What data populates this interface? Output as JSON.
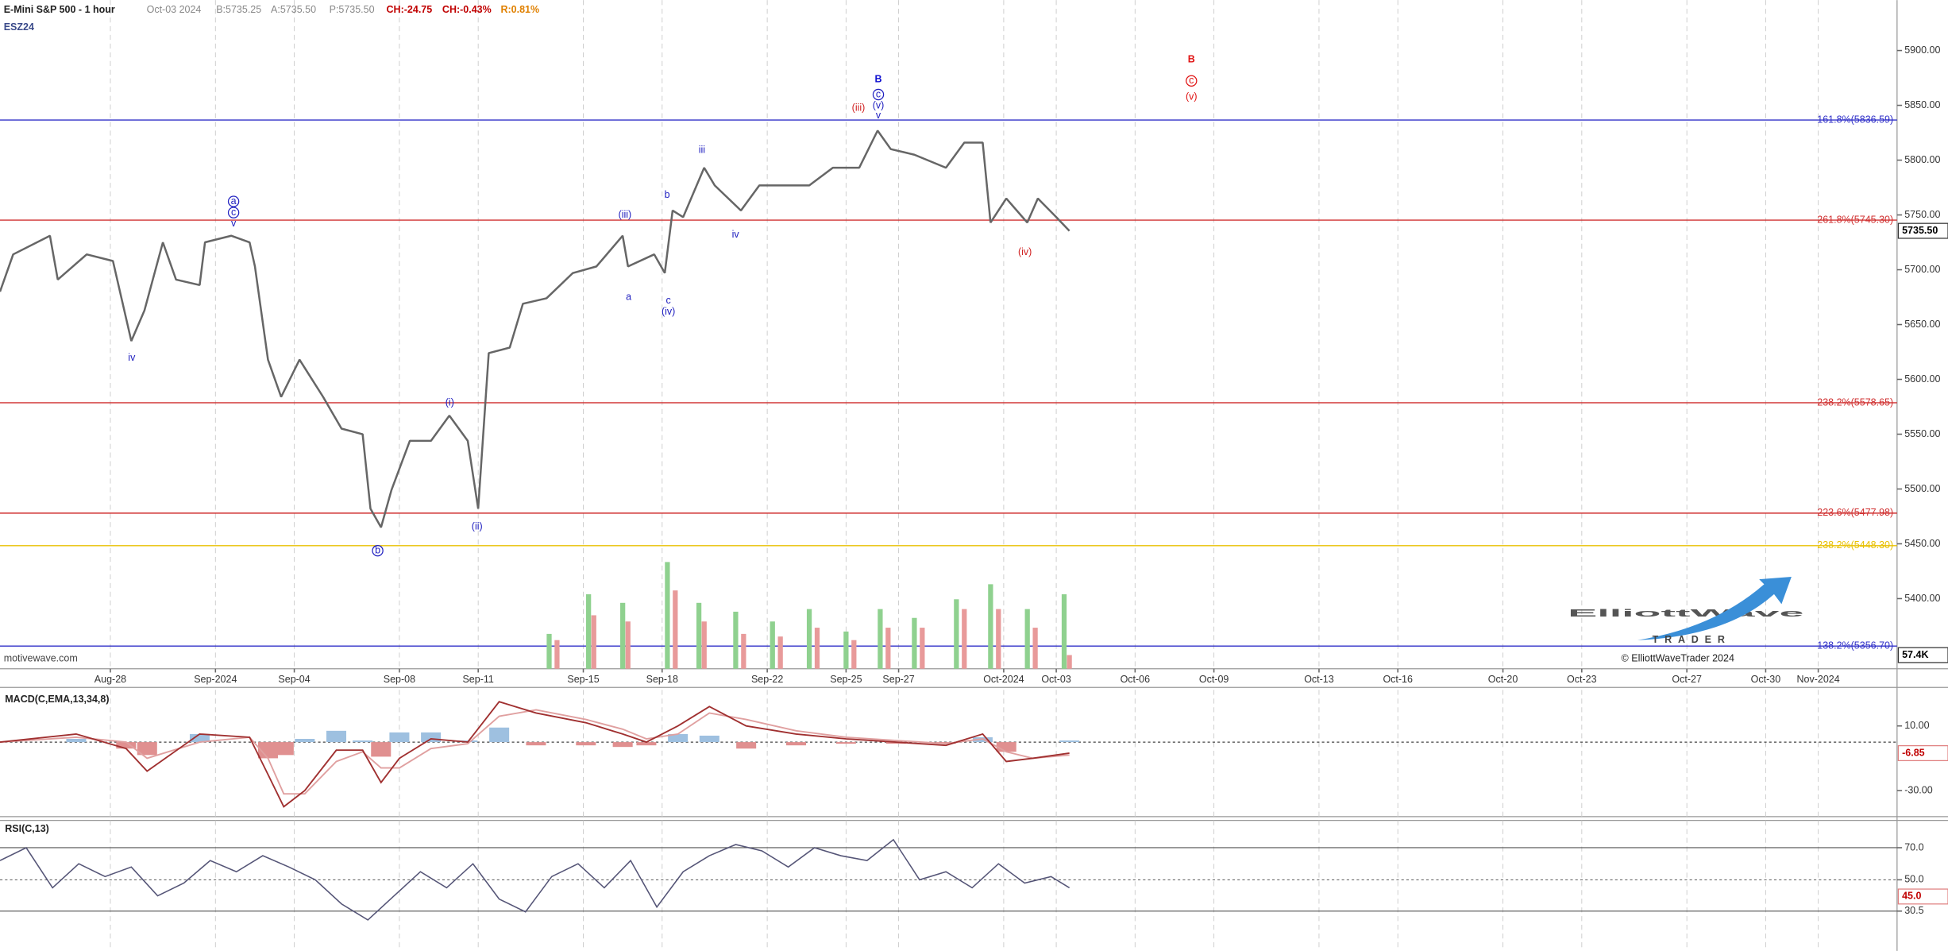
{
  "header": {
    "symbol_name": "E-Mini S&P 500 - 1 hour",
    "date": "Oct-03 2024",
    "bid": "B:5735.25",
    "ask": "A:5735.50",
    "price": "P:5735.50",
    "change": "CH:-24.75",
    "change_pct": "CH:-0.43%",
    "range": "R:0.81%",
    "ticker": "ESZ24"
  },
  "watermark": "motivewave.com",
  "logo": {
    "line1": "ElliottWave",
    "line2": "TRADER",
    "copyright": "© ElliottWaveTrader 2024"
  },
  "chart_data": [
    {
      "type": "line",
      "color": "#666666",
      "x": [
        -4.2,
        -3.7,
        -2.3,
        -2.0,
        -0.9,
        0.1,
        0.8,
        1.3,
        2.0,
        2.5,
        3.4,
        3.6,
        4.6,
        5.3,
        5.5,
        6.0,
        6.5,
        7.2,
        8.1,
        8.8,
        9.6,
        9.9,
        10.3,
        10.7,
        11.4,
        12.2,
        12.9,
        13.6,
        14.0,
        14.4,
        15.2,
        15.7,
        16.6,
        17.6,
        18.5,
        19.5,
        19.7,
        20.7,
        21.1,
        21.4,
        21.8,
        22.6,
        23.0,
        24.0,
        24.7,
        25.6,
        26.6,
        27.5,
        28.5,
        29.2,
        29.7,
        30.6,
        31.8,
        32.5,
        33.2,
        33.5,
        34.1,
        34.9,
        35.3,
        36.0,
        36.5
      ],
      "values": [
        5680,
        5714,
        5731,
        5691,
        5714,
        5708,
        5635,
        5663,
        5725,
        5691,
        5686,
        5725,
        5731,
        5725,
        5703,
        5618,
        5584,
        5618,
        5584,
        5555,
        5550,
        5482,
        5465,
        5499,
        5544,
        5544,
        5567,
        5544,
        5482,
        5624,
        5629,
        5669,
        5674,
        5697,
        5703,
        5731,
        5703,
        5714,
        5697,
        5754,
        5748,
        5793,
        5777,
        5754,
        5777,
        5777,
        5777,
        5793,
        5793,
        5827,
        5810,
        5805,
        5793,
        5816,
        5816,
        5743,
        5765,
        5743,
        5765,
        5748,
        5735.5
      ],
      "last_value_label": "5735.50",
      "xlim": [
        -4.2,
        68
      ],
      "ylim": [
        5336,
        5946
      ],
      "xticks": [
        {
          "value": 0,
          "label": "Aug-28"
        },
        {
          "value": 4,
          "label": "Sep-2024"
        },
        {
          "value": 7,
          "label": "Sep-04"
        },
        {
          "value": 11,
          "label": "Sep-08"
        },
        {
          "value": 14,
          "label": "Sep-11"
        },
        {
          "value": 18,
          "label": "Sep-15"
        },
        {
          "value": 21,
          "label": "Sep-18"
        },
        {
          "value": 25,
          "label": "Sep-22"
        },
        {
          "value": 28,
          "label": "Sep-25"
        },
        {
          "value": 30,
          "label": "Sep-27"
        },
        {
          "value": 34,
          "label": "Oct-2024"
        },
        {
          "value": 36,
          "label": "Oct-03"
        },
        {
          "value": 39,
          "label": "Oct-06"
        },
        {
          "value": 42,
          "label": "Oct-09"
        },
        {
          "value": 46,
          "label": "Oct-13"
        },
        {
          "value": 49,
          "label": "Oct-16"
        },
        {
          "value": 53,
          "label": "Oct-20"
        },
        {
          "value": 56,
          "label": "Oct-23"
        },
        {
          "value": 60,
          "label": "Oct-27"
        },
        {
          "value": 63,
          "label": "Oct-30"
        },
        {
          "value": 65,
          "label": "Nov-2024"
        }
      ],
      "yticks": [
        {
          "value": 5400,
          "label": "5400.00"
        },
        {
          "value": 5450,
          "label": "5450.00"
        },
        {
          "value": 5500,
          "label": "5500.00"
        },
        {
          "value": 5550,
          "label": "5550.00"
        },
        {
          "value": 5600,
          "label": "5600.00"
        },
        {
          "value": 5650,
          "label": "5650.00"
        },
        {
          "value": 5700,
          "label": "5700.00"
        },
        {
          "value": 5750,
          "label": "5750.00"
        },
        {
          "value": 5800,
          "label": "5800.00"
        },
        {
          "value": 5850,
          "label": "5850.00"
        },
        {
          "value": 5900,
          "label": "5900.00"
        }
      ],
      "grid": true,
      "levels": [
        {
          "value": 5836.59,
          "label": "161.8%(5836.59)",
          "color": "#3030c8"
        },
        {
          "value": 5745.3,
          "label": "261.8%(5745.30)",
          "color": "#d03030"
        },
        {
          "value": 5578.65,
          "label": "238.2%(5578.65)",
          "color": "#d03030"
        },
        {
          "value": 5477.98,
          "label": "223.6%(5477.98)",
          "color": "#d03030"
        },
        {
          "value": 5448.3,
          "label": "238.2%(5448.30)",
          "color": "#e8c000"
        },
        {
          "value": 5356.7,
          "label": "138.2%(5356.70)",
          "color": "#3030c8"
        }
      ],
      "annotations": [
        {
          "text": "a",
          "color": "#2020c0",
          "circled": true
        },
        {
          "text": "c",
          "color": "#2020c0",
          "circled": true
        },
        {
          "text": "v",
          "color": "#2020c0"
        },
        {
          "text": "iv",
          "color": "#2020c0"
        },
        {
          "text": "b",
          "color": "#2020c0",
          "circled": true
        },
        {
          "text": "(i)",
          "color": "#2020c0"
        },
        {
          "text": "(ii)",
          "color": "#2020c0"
        },
        {
          "text": "(iii)",
          "color": "#2020c0"
        },
        {
          "text": "a",
          "color": "#2020c0"
        },
        {
          "text": "b",
          "color": "#2020c0"
        },
        {
          "text": "c",
          "color": "#2020c0"
        },
        {
          "text": "(iv)",
          "color": "#2020c0"
        },
        {
          "text": "iii",
          "color": "#2020c0"
        },
        {
          "text": "iv",
          "color": "#2020c0"
        },
        {
          "text": "B",
          "color": "#1010d0",
          "bold": true
        },
        {
          "text": "c",
          "color": "#2020c0",
          "circled": true
        },
        {
          "text": "(v)",
          "color": "#2020c0"
        },
        {
          "text": "v",
          "color": "#2020c0"
        },
        {
          "text": "(iii)",
          "color": "#d02020"
        },
        {
          "text": "(iv)",
          "color": "#d02020"
        },
        {
          "text": "B",
          "color": "#e01010",
          "bold": true
        },
        {
          "text": "c",
          "color": "#e01010",
          "circled": true
        },
        {
          "text": "(v)",
          "color": "#e01010"
        }
      ]
    },
    {
      "type": "bar",
      "x": [
        16.7,
        17.0,
        18.2,
        18.4,
        19.5,
        19.7,
        21.2,
        21.5,
        22.4,
        22.6,
        23.8,
        24.1,
        25.2,
        25.5,
        26.6,
        26.9,
        28.0,
        28.3,
        29.3,
        29.6,
        30.6,
        30.9,
        32.2,
        32.5,
        33.5,
        33.8,
        34.9,
        35.2,
        36.3,
        36.5
      ],
      "values": [
        146,
        120,
        312,
        224,
        276,
        198,
        447,
        328,
        276,
        198,
        239,
        146,
        198,
        135,
        250,
        172,
        156,
        120,
        250,
        172,
        213,
        172,
        291,
        250,
        354,
        250,
        250,
        172,
        312,
        57.4
      ],
      "colors": [
        "#8fd18f",
        "#e89a9a",
        "#8fd18f",
        "#e89a9a",
        "#8fd18f",
        "#e89a9a",
        "#8fd18f",
        "#e89a9a",
        "#8fd18f",
        "#e89a9a",
        "#8fd18f",
        "#e89a9a",
        "#8fd18f",
        "#e89a9a",
        "#8fd18f",
        "#e89a9a",
        "#8fd18f",
        "#e89a9a",
        "#8fd18f",
        "#e89a9a",
        "#8fd18f",
        "#e89a9a",
        "#8fd18f",
        "#e89a9a",
        "#8fd18f",
        "#e89a9a",
        "#8fd18f",
        "#e89a9a",
        "#8fd18f",
        "#e89a9a"
      ],
      "last_value_label": "57.4K",
      "xlim": [
        -4.2,
        68
      ],
      "ylim": [
        0,
        2800
      ]
    },
    {
      "type": "macd",
      "title": "MACD(C,EMA,13,34,8)",
      "x": [
        -4.2,
        -1.3,
        0.6,
        1.4,
        3.4,
        5.3,
        6.0,
        6.6,
        7.4,
        8.6,
        9.6,
        10.3,
        11.0,
        12.2,
        13.6,
        14.8,
        16.2,
        18.1,
        19.5,
        20.4,
        21.6,
        22.8,
        24.2,
        26.1,
        28.0,
        29.9,
        31.8,
        33.2,
        34.1,
        35.1,
        36.5
      ],
      "macd": {
        "color": "#a03030",
        "values": [
          0,
          5,
          -4,
          -18,
          5,
          3,
          -20,
          -40,
          -30,
          -5,
          -5,
          -25,
          -10,
          2,
          0,
          25,
          18,
          12,
          5,
          0,
          10,
          22,
          10,
          5,
          2,
          0,
          -2,
          5,
          -12,
          -10,
          -6.85
        ]
      },
      "signal": {
        "color": "#e0a0a0",
        "values": [
          0,
          3,
          0,
          -10,
          0,
          3,
          -10,
          -32,
          -32,
          -12,
          -6,
          -16,
          -16,
          -4,
          -1,
          16,
          20,
          14,
          8,
          2,
          5,
          18,
          14,
          7,
          3,
          1,
          -1,
          2,
          -6,
          -10,
          -8
        ]
      },
      "histogram": {
        "up_color": "#9ec0e0",
        "down_color": "#e09090",
        "values": [
          0,
          2,
          -4,
          -8,
          5,
          0,
          -10,
          -8,
          2,
          7,
          1,
          -9,
          6,
          6,
          1,
          9,
          -2,
          -2,
          -3,
          -2,
          5,
          4,
          -4,
          -2,
          -1,
          -1,
          -1,
          3,
          -6,
          0,
          1
        ]
      },
      "last_value_label": "-6.85",
      "xlim": [
        -4.2,
        68
      ],
      "ylim": [
        -46.9,
        32.3
      ],
      "yticks": [
        {
          "value": 10,
          "label": "10.00"
        },
        {
          "value": -30,
          "label": "-30.00"
        }
      ]
    },
    {
      "type": "rsi",
      "title": "RSI(C,13)",
      "color": "#555577",
      "x": [
        -4.2,
        -3.2,
        -2.2,
        -1.2,
        -0.2,
        0.8,
        1.8,
        2.8,
        3.8,
        4.8,
        5.8,
        6.8,
        7.8,
        8.8,
        9.8,
        10.8,
        11.8,
        12.8,
        13.8,
        14.8,
        15.8,
        16.8,
        17.8,
        18.8,
        19.8,
        20.8,
        21.8,
        22.8,
        23.8,
        24.8,
        25.8,
        26.8,
        27.8,
        28.8,
        29.8,
        30.8,
        31.8,
        32.8,
        33.8,
        34.8,
        35.8,
        36.5
      ],
      "values": [
        62,
        70,
        45,
        60,
        52,
        58,
        40,
        48,
        62,
        55,
        65,
        58,
        50,
        35,
        25,
        40,
        55,
        45,
        60,
        38,
        30,
        52,
        60,
        45,
        62,
        33,
        55,
        65,
        72,
        68,
        58,
        70,
        65,
        62,
        75,
        50,
        55,
        45,
        60,
        48,
        52,
        45
      ],
      "last_value_label": "45.0",
      "xlim": [
        -4.2,
        68
      ],
      "ylim": [
        5.7,
        87
      ],
      "yticks": [
        {
          "value": 70,
          "label": "70.0"
        },
        {
          "value": 50,
          "label": "50.0"
        },
        {
          "value": 30.5,
          "label": "30.5"
        }
      ]
    }
  ]
}
